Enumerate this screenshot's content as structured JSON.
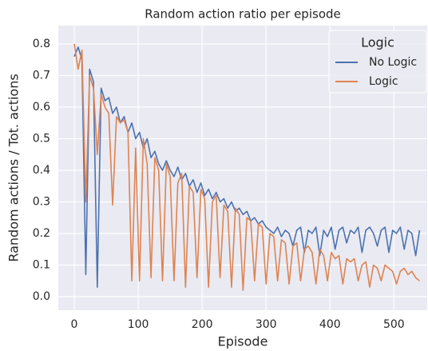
{
  "chart_data": {
    "type": "line",
    "title": "Random action ratio per episode",
    "xlabel": "Episode",
    "ylabel": "Random actions / Tot. actions",
    "legend_title": "Logic",
    "legend": "upper right",
    "grid": true,
    "xlim": [
      -25,
      552
    ],
    "ylim": [
      -0.043,
      0.858
    ],
    "xticks": [
      0,
      100,
      200,
      300,
      400,
      500
    ],
    "yticks": [
      {
        "value": 0,
        "label": "0.0"
      },
      0.1,
      0.2,
      0.3,
      0.4,
      0.5,
      0.6,
      0.7,
      0.8
    ],
    "x": [
      0,
      6,
      12,
      18,
      24,
      30,
      36,
      42,
      48,
      54,
      60,
      66,
      72,
      78,
      84,
      90,
      96,
      102,
      108,
      114,
      120,
      126,
      132,
      138,
      144,
      150,
      156,
      162,
      168,
      174,
      180,
      186,
      192,
      198,
      204,
      210,
      216,
      222,
      228,
      234,
      240,
      246,
      252,
      258,
      264,
      270,
      276,
      282,
      288,
      294,
      300,
      306,
      312,
      318,
      324,
      330,
      336,
      342,
      348,
      354,
      360,
      366,
      372,
      378,
      384,
      390,
      396,
      402,
      408,
      414,
      420,
      426,
      432,
      438,
      444,
      450,
      456,
      462,
      468,
      474,
      480,
      486,
      492,
      498,
      504,
      510,
      516,
      522,
      528,
      534,
      540
    ],
    "series": [
      {
        "name": "No Logic",
        "color": "#4c72b0",
        "values": [
          0.76,
          0.79,
          0.75,
          0.07,
          0.72,
          0.68,
          0.03,
          0.66,
          0.62,
          0.63,
          0.58,
          0.6,
          0.55,
          0.57,
          0.52,
          0.55,
          0.5,
          0.52,
          0.47,
          0.5,
          0.44,
          0.46,
          0.42,
          0.4,
          0.43,
          0.4,
          0.38,
          0.41,
          0.37,
          0.39,
          0.35,
          0.37,
          0.33,
          0.36,
          0.32,
          0.34,
          0.31,
          0.33,
          0.3,
          0.31,
          0.28,
          0.3,
          0.27,
          0.28,
          0.26,
          0.27,
          0.24,
          0.25,
          0.23,
          0.24,
          0.22,
          0.21,
          0.2,
          0.22,
          0.19,
          0.21,
          0.2,
          0.16,
          0.21,
          0.22,
          0.14,
          0.21,
          0.2,
          0.22,
          0.13,
          0.21,
          0.19,
          0.22,
          0.15,
          0.21,
          0.22,
          0.17,
          0.21,
          0.2,
          0.22,
          0.14,
          0.21,
          0.22,
          0.2,
          0.16,
          0.21,
          0.22,
          0.14,
          0.21,
          0.2,
          0.22,
          0.15,
          0.21,
          0.2,
          0.13,
          0.21
        ]
      },
      {
        "name": "Logic",
        "color": "#dd8452",
        "values": [
          0.8,
          0.72,
          0.78,
          0.3,
          0.7,
          0.66,
          0.45,
          0.64,
          0.6,
          0.58,
          0.29,
          0.57,
          0.55,
          0.56,
          0.52,
          0.05,
          0.47,
          0.05,
          0.5,
          0.42,
          0.06,
          0.44,
          0.4,
          0.05,
          0.42,
          0.38,
          0.05,
          0.36,
          0.39,
          0.03,
          0.35,
          0.33,
          0.06,
          0.34,
          0.31,
          0.03,
          0.3,
          0.32,
          0.06,
          0.29,
          0.27,
          0.03,
          0.28,
          0.26,
          0.02,
          0.25,
          0.24,
          0.05,
          0.23,
          0.22,
          0.04,
          0.2,
          0.19,
          0.05,
          0.18,
          0.17,
          0.04,
          0.16,
          0.17,
          0.05,
          0.15,
          0.16,
          0.14,
          0.04,
          0.15,
          0.13,
          0.05,
          0.14,
          0.12,
          0.13,
          0.04,
          0.12,
          0.11,
          0.12,
          0.05,
          0.1,
          0.11,
          0.03,
          0.1,
          0.09,
          0.05,
          0.1,
          0.09,
          0.08,
          0.04,
          0.08,
          0.09,
          0.07,
          0.08,
          0.06,
          0.05
        ]
      }
    ]
  }
}
